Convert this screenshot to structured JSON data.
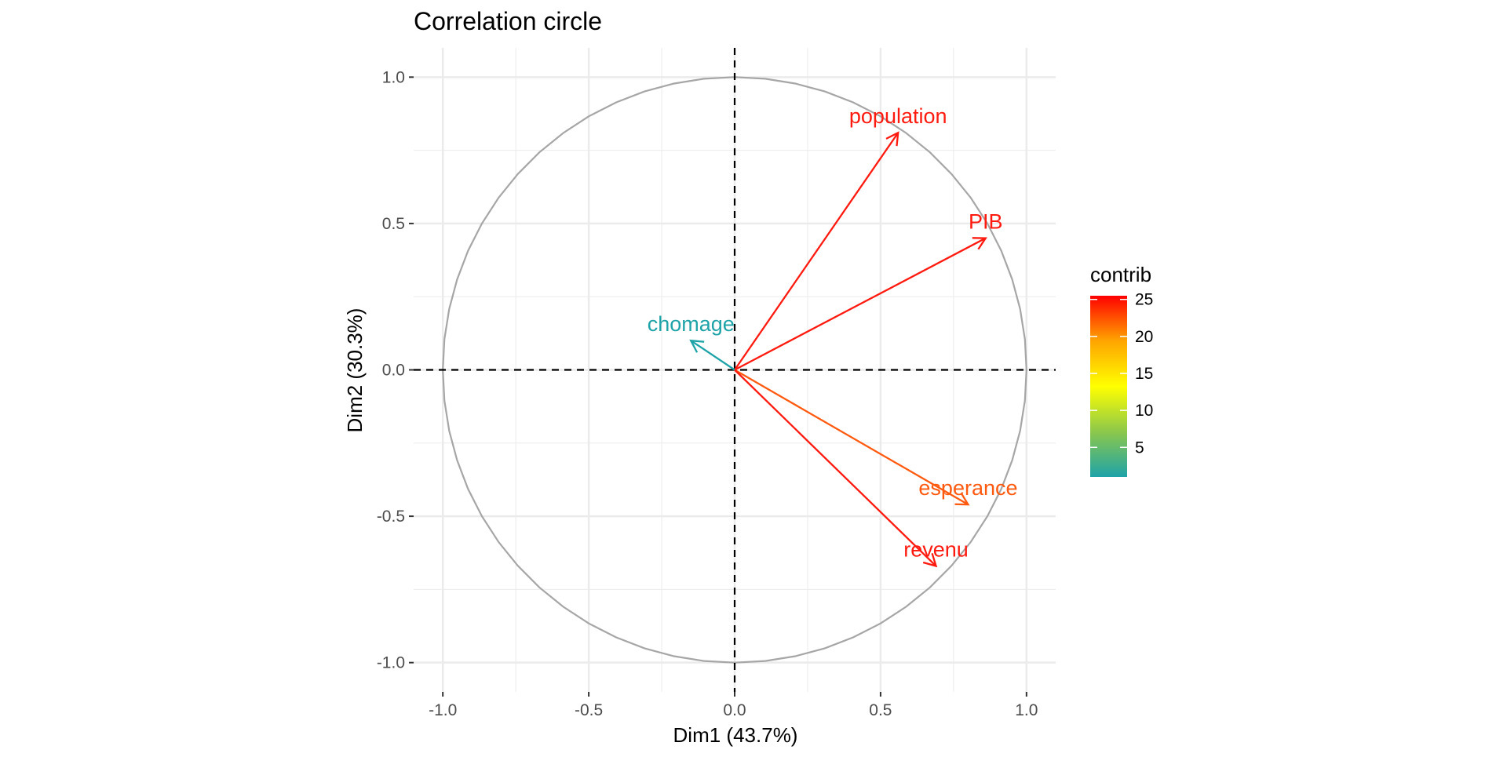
{
  "chart_data": {
    "type": "scatter",
    "subtype": "pca-correlation-circle",
    "title": "Correlation circle",
    "xlabel": "Dim1 (43.7%)",
    "ylabel": "Dim2 (30.3%)",
    "xlim": [
      -1.1,
      1.1
    ],
    "ylim": [
      -1.1,
      1.1
    ],
    "x_ticks": [
      -1.0,
      -0.5,
      0.0,
      0.5,
      1.0
    ],
    "y_ticks": [
      -1.0,
      -0.5,
      0.0,
      0.5,
      1.0
    ],
    "x_tick_labels": [
      "-1.0",
      "-0.5",
      "0.0",
      "0.5",
      "1.0"
    ],
    "y_tick_labels": [
      "-1.0",
      "-0.5",
      "0.0",
      "0.5",
      "1.0"
    ],
    "grid": true,
    "unit_circle": true,
    "reference_lines": "dashed at x=0 and y=0",
    "variables": [
      {
        "name": "population",
        "x": 0.56,
        "y": 0.81,
        "contrib": 25.5,
        "color": "#ff1a0f"
      },
      {
        "name": "PIB",
        "x": 0.86,
        "y": 0.45,
        "contrib": 25.0,
        "color": "#ff1a0f"
      },
      {
        "name": "chomage",
        "x": -0.15,
        "y": 0.1,
        "contrib": 1.0,
        "color": "#1ea3a8"
      },
      {
        "name": "esperance",
        "x": 0.8,
        "y": -0.46,
        "contrib": 22.0,
        "color": "#ff5a0f"
      },
      {
        "name": "revenu",
        "x": 0.69,
        "y": -0.67,
        "contrib": 25.0,
        "color": "#ff1a0f"
      }
    ],
    "legend": {
      "title": "contrib",
      "placement": "right",
      "range": [
        1,
        25.5
      ],
      "ticks": [
        5,
        10,
        15,
        20,
        25
      ],
      "tick_labels": [
        "5",
        "10",
        "15",
        "20",
        "25"
      ],
      "gradient_colors": [
        "#1ea3a8",
        "#8cc84b",
        "#ffff00",
        "#ffa500",
        "#ff0000"
      ]
    },
    "colors": {
      "grid": "#ebebeb",
      "circle": "#a6a6a6",
      "reference_line": "#000000",
      "tick_text": "#4d4d4d"
    }
  }
}
